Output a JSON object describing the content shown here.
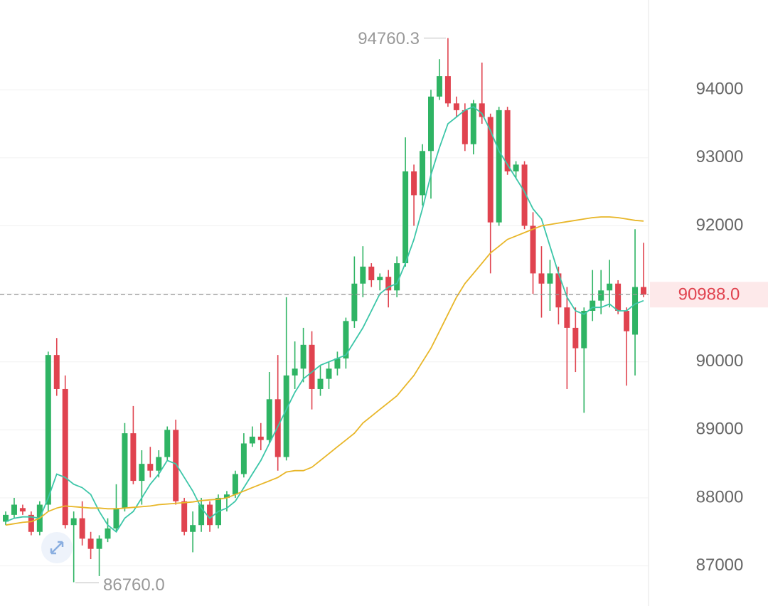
{
  "chart_data": {
    "type": "candlestick",
    "up_color": "#2fb464",
    "down_color": "#e0434f",
    "ylim": [
      86410,
      95320
    ],
    "yticks": [
      87000,
      88000,
      89000,
      90000,
      91000,
      92000,
      93000,
      94000
    ],
    "grid": true,
    "open": [
      87650,
      87750,
      87850,
      87750,
      87500,
      87900,
      90100,
      89600,
      87600,
      87700,
      87400,
      87250,
      87400,
      87550,
      87850,
      88950,
      88250,
      88500,
      88400,
      88600,
      89000,
      87950,
      87500,
      87600,
      87900,
      87600,
      88000,
      88050,
      88350,
      88800,
      88900,
      88850,
      89450,
      88600,
      89800,
      89900,
      90250,
      89600,
      89750,
      89900,
      90050,
      90600,
      91150,
      91400,
      91200,
      91250,
      91050,
      91450,
      92800,
      92450,
      93100,
      93900,
      94200,
      93800,
      93700,
      93200,
      93800,
      93600,
      92050,
      93700,
      92800,
      92900,
      92000,
      91300,
      91150,
      91300,
      90800,
      90500,
      90200,
      90750,
      90900,
      91050,
      91150,
      90750,
      90400,
      91100
    ],
    "high": [
      87800,
      88000,
      87900,
      87800,
      87950,
      90150,
      90350,
      89800,
      87800,
      87950,
      87500,
      87450,
      87700,
      88200,
      89100,
      89350,
      88700,
      88750,
      88700,
      89050,
      89150,
      88000,
      87800,
      88000,
      87950,
      88050,
      88100,
      88400,
      88950,
      89050,
      89100,
      89850,
      90100,
      90950,
      90300,
      90500,
      90450,
      89950,
      90000,
      90150,
      90650,
      91550,
      91700,
      91450,
      91300,
      91350,
      91550,
      93300,
      92900,
      93200,
      94000,
      94450,
      94760.3,
      93900,
      93800,
      93850,
      94400,
      93650,
      93750,
      93750,
      92950,
      92950,
      92200,
      91700,
      91500,
      91400,
      91100,
      90800,
      90800,
      91350,
      91350,
      91500,
      91200,
      90800,
      91950,
      91750
    ],
    "low": [
      87600,
      87700,
      87750,
      87450,
      87450,
      87800,
      89500,
      87550,
      86760,
      87300,
      87100,
      86850,
      87350,
      87500,
      87800,
      88200,
      87900,
      88300,
      88300,
      88550,
      87900,
      87450,
      87200,
      87500,
      87500,
      87550,
      87800,
      88000,
      88300,
      88750,
      88700,
      88800,
      88400,
      88550,
      89600,
      89700,
      89300,
      89500,
      89600,
      89800,
      89900,
      90500,
      90950,
      91100,
      91050,
      90800,
      90950,
      91400,
      92000,
      92300,
      92400,
      93850,
      93750,
      93600,
      93100,
      93050,
      93500,
      91300,
      92000,
      92750,
      92700,
      91950,
      91000,
      90650,
      90750,
      90550,
      89600,
      89850,
      89250,
      90600,
      90700,
      90800,
      90700,
      89650,
      89800,
      90950
    ],
    "close": [
      87750,
      87900,
      87800,
      87500,
      87900,
      90100,
      89600,
      87600,
      87700,
      87400,
      87250,
      87400,
      87550,
      87850,
      88950,
      88250,
      88500,
      88400,
      88600,
      89000,
      87950,
      87500,
      87600,
      87900,
      87600,
      88000,
      88050,
      88350,
      88800,
      88900,
      88850,
      89450,
      88600,
      89800,
      89900,
      90250,
      89600,
      89750,
      89900,
      90050,
      90600,
      91150,
      91400,
      91200,
      91250,
      91050,
      91450,
      92800,
      92450,
      93100,
      93900,
      94200,
      93800,
      93700,
      93200,
      93800,
      93600,
      92050,
      93700,
      92800,
      92900,
      92000,
      91300,
      91150,
      91300,
      90800,
      90500,
      90200,
      90750,
      90900,
      91050,
      91150,
      90750,
      90450,
      91100,
      90988
    ],
    "series": [
      {
        "color": "#3cc6a8",
        "values": [
          87650,
          87700,
          87720,
          87720,
          87700,
          88000,
          88350,
          88300,
          88200,
          88150,
          88050,
          87800,
          87600,
          87500,
          87700,
          87800,
          88000,
          88200,
          88350,
          88550,
          88500,
          88300,
          88100,
          87850,
          87700,
          87800,
          87850,
          87950,
          88150,
          88350,
          88550,
          88800,
          89050,
          89300,
          89550,
          89750,
          89850,
          89950,
          90000,
          90050,
          90100,
          90300,
          90500,
          90750,
          91000,
          91100,
          91150,
          91450,
          91800,
          92250,
          92750,
          93150,
          93500,
          93600,
          93700,
          93750,
          93650,
          93400,
          93100,
          92900,
          92700,
          92500,
          92250,
          92100,
          91700,
          91300,
          90950,
          90750,
          90700,
          90800,
          90800,
          90850,
          90750,
          90750,
          90850,
          90900
        ]
      },
      {
        "color": "#e8b628",
        "values": [
          87600,
          87620,
          87640,
          87650,
          87700,
          87800,
          87850,
          87880,
          87870,
          87860,
          87850,
          87850,
          87840,
          87840,
          87850,
          87860,
          87870,
          87880,
          87900,
          87910,
          87920,
          87930,
          87940,
          87960,
          87970,
          87980,
          88000,
          88050,
          88100,
          88150,
          88200,
          88250,
          88300,
          88380,
          88400,
          88400,
          88450,
          88550,
          88650,
          88750,
          88850,
          88950,
          89100,
          89200,
          89300,
          89400,
          89500,
          89650,
          89800,
          90000,
          90200,
          90450,
          90700,
          90950,
          91150,
          91300,
          91450,
          91600,
          91700,
          91800,
          91850,
          91900,
          91950,
          92000,
          92020,
          92040,
          92060,
          92080,
          92100,
          92120,
          92130,
          92130,
          92120,
          92100,
          92080,
          92070
        ]
      }
    ],
    "annotations": [
      {
        "value": 94760.3,
        "label": "94760.3"
      },
      {
        "value": 86760,
        "label": "86760.0"
      }
    ],
    "last_price": {
      "value": 90988,
      "label": "90988.0"
    }
  }
}
